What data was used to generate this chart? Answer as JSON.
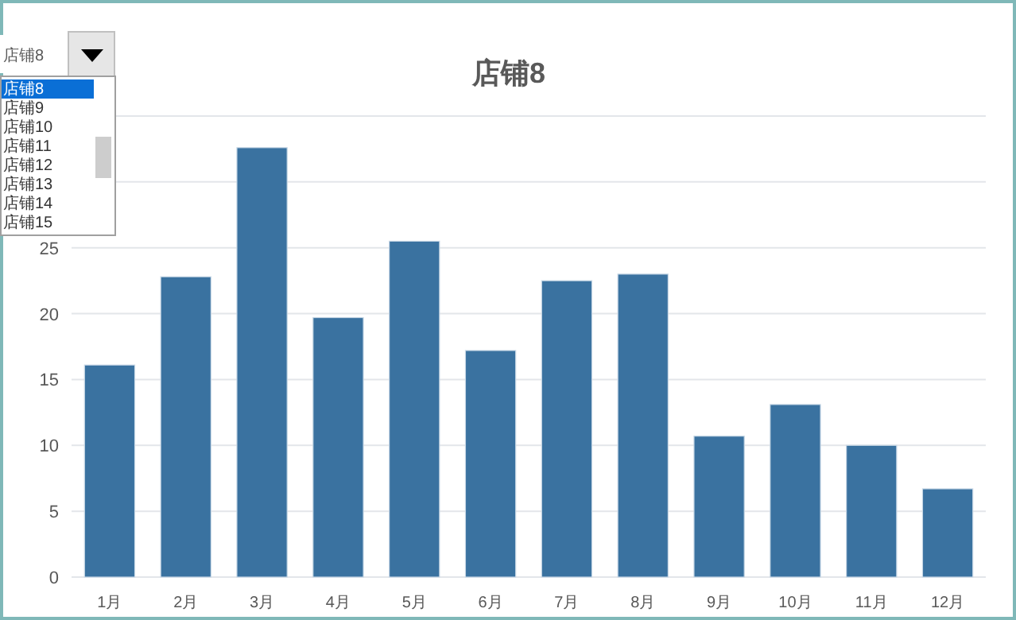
{
  "chart_data": {
    "type": "bar",
    "title": "店铺8",
    "categories": [
      "1月",
      "2月",
      "3月",
      "4月",
      "5月",
      "6月",
      "7月",
      "8月",
      "9月",
      "10月",
      "11月",
      "12月"
    ],
    "series": [
      {
        "color": "#3a72a0",
        "values": [
          16.1,
          22.8,
          32.6,
          19.7,
          25.5,
          17.2,
          22.5,
          23.0,
          10.7,
          13.1,
          10.0,
          6.7
        ]
      }
    ],
    "ylim": [
      0,
      35
    ],
    "yticks": [
      0,
      5,
      10,
      15,
      20,
      25,
      {
        "value": 30,
        "label": null
      },
      {
        "value": 35,
        "label": null
      }
    ],
    "grid": "y",
    "annotations": [
      "店铺8",
      "店铺8",
      "店铺9",
      "店铺10",
      "店铺11",
      "店铺12",
      "店铺13",
      "店铺14",
      "店铺15"
    ]
  }
}
